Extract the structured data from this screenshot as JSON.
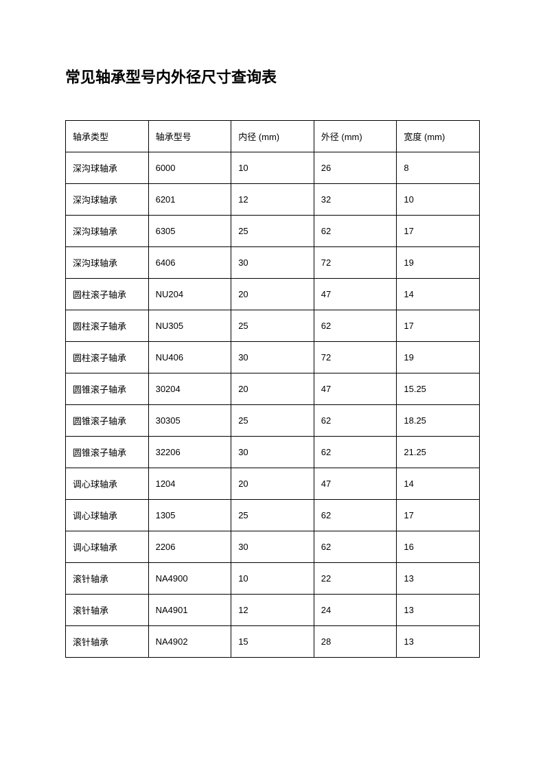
{
  "title": "常见轴承型号内外径尺寸查询表",
  "table": {
    "type": "table",
    "border_color": "#000000",
    "background_color": "#ffffff",
    "text_color": "#000000",
    "header_fontsize": 13,
    "cell_fontsize": 13,
    "cell_padding": "13px 10px",
    "column_widths_pct": [
      20,
      20,
      20,
      20,
      20
    ],
    "columns": [
      "轴承类型",
      "轴承型号",
      "内径 (mm)",
      "外径 (mm)",
      "宽度 (mm)"
    ],
    "rows": [
      [
        "深沟球轴承",
        "6000",
        "10",
        "26",
        "8"
      ],
      [
        "深沟球轴承",
        "6201",
        "12",
        "32",
        "10"
      ],
      [
        "深沟球轴承",
        "6305",
        "25",
        "62",
        "17"
      ],
      [
        "深沟球轴承",
        "6406",
        "30",
        "72",
        "19"
      ],
      [
        "圆柱滚子轴承",
        "NU204",
        "20",
        "47",
        "14"
      ],
      [
        "圆柱滚子轴承",
        "NU305",
        "25",
        "62",
        "17"
      ],
      [
        "圆柱滚子轴承",
        "NU406",
        "30",
        "72",
        "19"
      ],
      [
        "圆锥滚子轴承",
        "30204",
        "20",
        "47",
        "15.25"
      ],
      [
        "圆锥滚子轴承",
        "30305",
        "25",
        "62",
        "18.25"
      ],
      [
        "圆锥滚子轴承",
        "32206",
        "30",
        "62",
        "21.25"
      ],
      [
        "调心球轴承",
        "1204",
        "20",
        "47",
        "14"
      ],
      [
        "调心球轴承",
        "1305",
        "25",
        "62",
        "17"
      ],
      [
        "调心球轴承",
        "2206",
        "30",
        "62",
        "16"
      ],
      [
        "滚针轴承",
        "NA4900",
        "10",
        "22",
        "13"
      ],
      [
        "滚针轴承",
        "NA4901",
        "12",
        "24",
        "13"
      ],
      [
        "滚针轴承",
        "NA4902",
        "15",
        "28",
        "13"
      ]
    ]
  }
}
